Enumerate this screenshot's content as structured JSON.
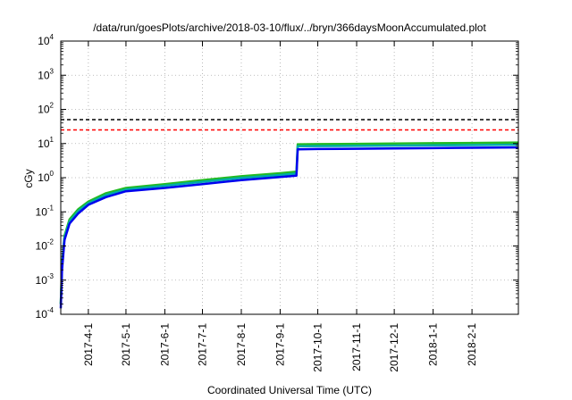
{
  "chart_data": {
    "type": "line",
    "title": "/data/run/goesPlots/archive/2018-03-10/flux/../bryn/366daysMoonAccumulated.plot",
    "xlabel": "Coordinated Universal Time (UTC)",
    "ylabel": "cGy",
    "yscale": "log",
    "ylim": [
      0.0001,
      10000
    ],
    "xlim": [
      "2017-03-10",
      "2018-03-10"
    ],
    "grid": true,
    "x_ticks": [
      "2017-4-1",
      "2017-5-1",
      "2017-6-1",
      "2017-7-1",
      "2017-8-1",
      "2017-9-1",
      "2017-10-1",
      "2017-11-1",
      "2017-12-1",
      "2018-1-1",
      "2018-2-1"
    ],
    "y_ticks": [
      {
        "value": 0.0001,
        "base": "10",
        "exp": "-4"
      },
      {
        "value": 0.001,
        "base": "10",
        "exp": "-3"
      },
      {
        "value": 0.01,
        "base": "10",
        "exp": "-2"
      },
      {
        "value": 0.1,
        "base": "10",
        "exp": "-1"
      },
      {
        "value": 1,
        "base": "10",
        "exp": "0"
      },
      {
        "value": 10,
        "base": "10",
        "exp": "1"
      },
      {
        "value": 100,
        "base": "10",
        "exp": "2"
      },
      {
        "value": 1000,
        "base": "10",
        "exp": "3"
      },
      {
        "value": 10000,
        "base": "10",
        "exp": "4"
      }
    ],
    "reference_lines": [
      {
        "y": 50,
        "color": "#000000",
        "style": "dashed"
      },
      {
        "y": 25,
        "color": "#ff0000",
        "style": "dashed"
      }
    ],
    "series": [
      {
        "color": "#22bb22",
        "x": [
          "2017-03-10",
          "2017-03-11",
          "2017-03-13",
          "2017-03-17",
          "2017-03-24",
          "2017-04-01",
          "2017-04-15",
          "2017-05-01",
          "2017-06-01",
          "2017-07-01",
          "2017-08-01",
          "2017-09-01",
          "2017-09-14",
          "2017-09-15",
          "2017-10-01",
          "2017-11-01",
          "2017-12-01",
          "2018-01-01",
          "2018-02-01",
          "2018-03-10"
        ],
        "y": [
          0.0002,
          0.003,
          0.02,
          0.06,
          0.12,
          0.2,
          0.35,
          0.5,
          0.65,
          0.85,
          1.1,
          1.35,
          1.5,
          9.5,
          9.6,
          9.8,
          10.0,
          10.2,
          10.4,
          10.7
        ]
      },
      {
        "color": "#00aaaa",
        "x": [
          "2017-03-10",
          "2017-03-11",
          "2017-03-13",
          "2017-03-17",
          "2017-03-24",
          "2017-04-01",
          "2017-04-15",
          "2017-05-01",
          "2017-06-01",
          "2017-07-01",
          "2017-08-01",
          "2017-09-01",
          "2017-09-14",
          "2017-09-15",
          "2017-10-01",
          "2017-11-01",
          "2017-12-01",
          "2018-01-01",
          "2018-02-01",
          "2018-03-10"
        ],
        "y": [
          0.0002,
          0.0025,
          0.018,
          0.052,
          0.105,
          0.18,
          0.31,
          0.45,
          0.58,
          0.76,
          0.98,
          1.2,
          1.32,
          8.3,
          8.4,
          8.55,
          8.7,
          8.85,
          9.0,
          9.2
        ]
      },
      {
        "color": "#0000ee",
        "x": [
          "2017-03-10",
          "2017-03-11",
          "2017-03-13",
          "2017-03-17",
          "2017-03-24",
          "2017-04-01",
          "2017-04-15",
          "2017-05-01",
          "2017-06-01",
          "2017-07-01",
          "2017-08-01",
          "2017-09-01",
          "2017-09-14",
          "2017-09-15",
          "2017-10-01",
          "2017-11-01",
          "2017-12-01",
          "2018-01-01",
          "2018-02-01",
          "2018-03-10"
        ],
        "y": [
          0.00015,
          0.002,
          0.015,
          0.045,
          0.09,
          0.16,
          0.27,
          0.4,
          0.5,
          0.65,
          0.85,
          1.05,
          1.15,
          6.8,
          6.9,
          7.05,
          7.2,
          7.35,
          7.5,
          7.7
        ]
      }
    ]
  }
}
